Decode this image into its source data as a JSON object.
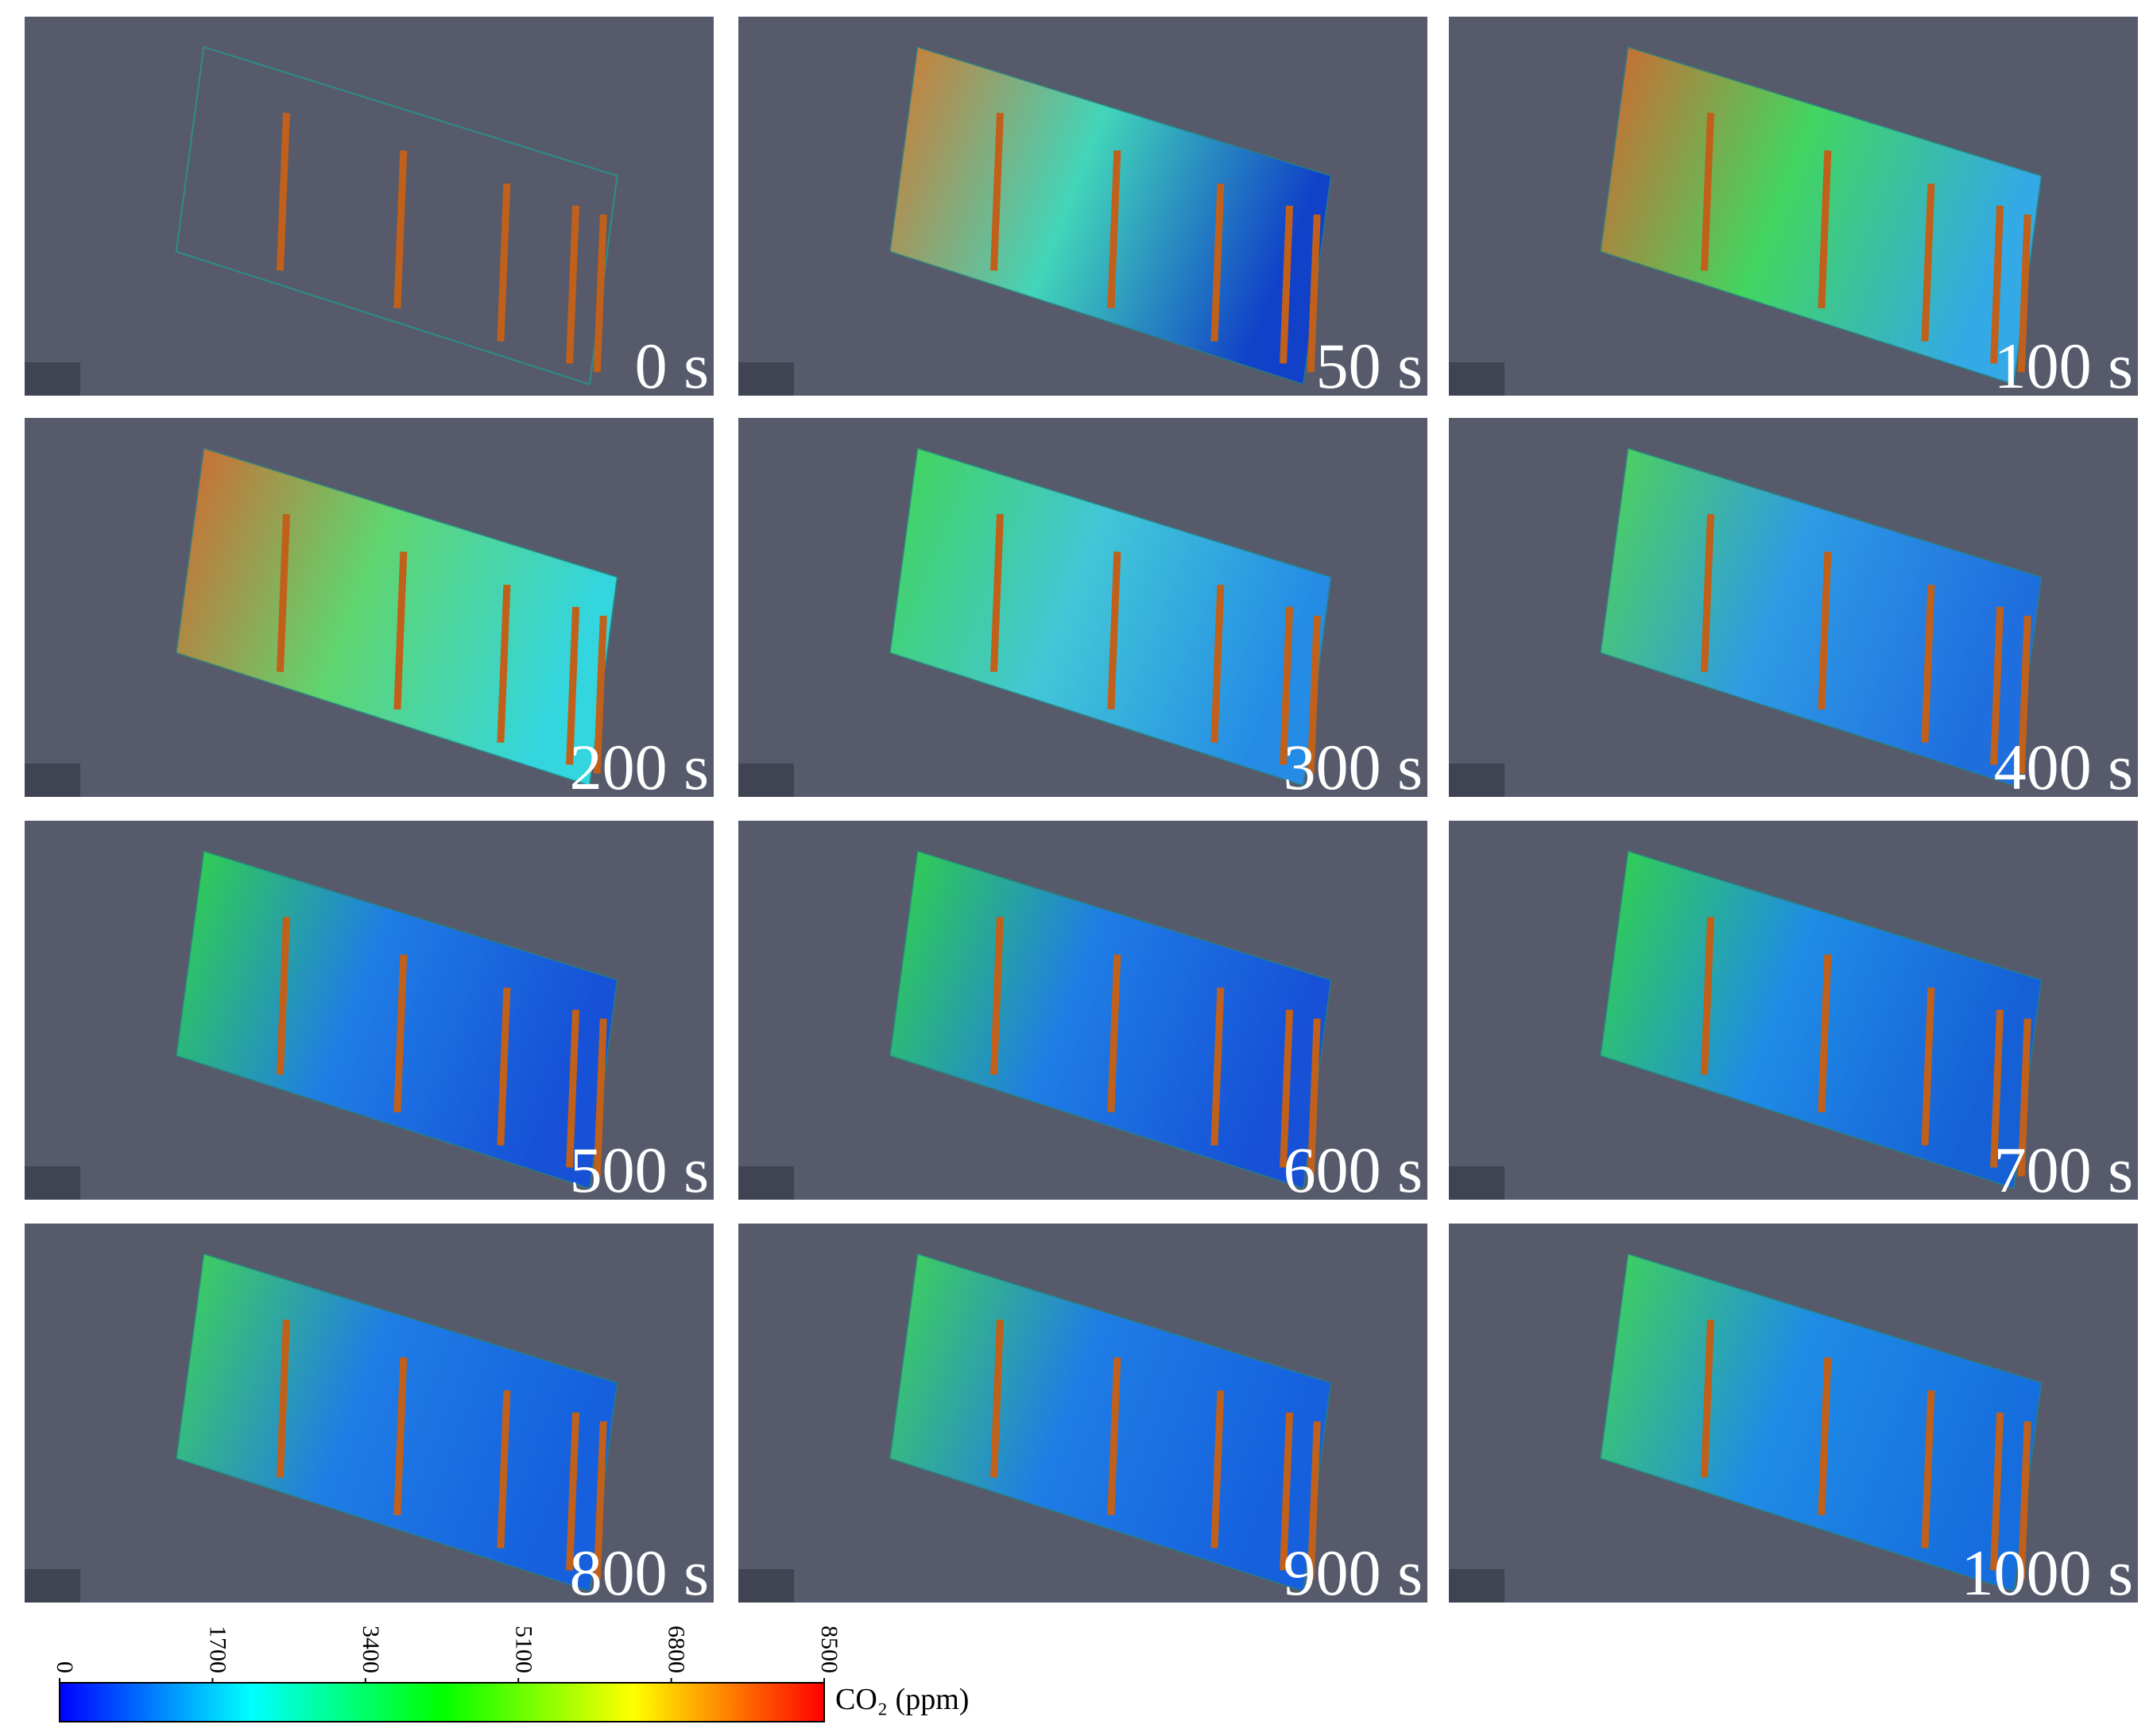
{
  "panels": [
    {
      "label": "0 s"
    },
    {
      "label": "50 s"
    },
    {
      "label": "100 s"
    },
    {
      "label": "200 s"
    },
    {
      "label": "300 s"
    },
    {
      "label": "400 s"
    },
    {
      "label": "500 s"
    },
    {
      "label": "600 s"
    },
    {
      "label": "700 s"
    },
    {
      "label": "800 s"
    },
    {
      "label": "900 s"
    },
    {
      "label": "1000 s"
    }
  ],
  "colorbar": {
    "label": "CO₂ (ppm)",
    "range": [
      0,
      8500
    ],
    "ticks": [
      0,
      1700,
      3400,
      5100,
      6800,
      8500
    ],
    "colors": [
      "#0000ff",
      "#00ffff",
      "#00ff00",
      "#ffff00",
      "#ff0000"
    ]
  }
}
